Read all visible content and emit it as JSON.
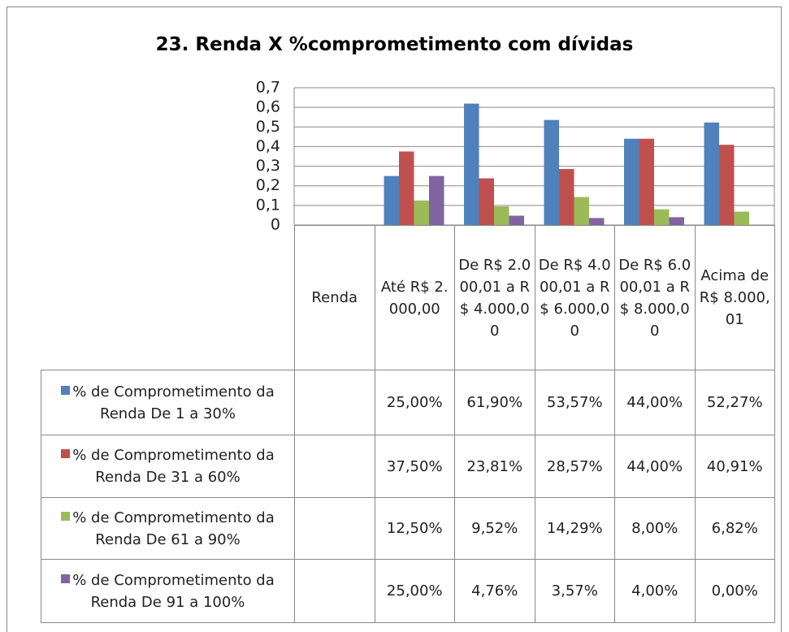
{
  "chart_data": {
    "type": "bar",
    "title": "23. Renda X %comprometimento com dívidas",
    "categories": [
      "Renda",
      "Até R$ 2.000,00",
      "De R$ 2.000,01 a R$ 4.000,00",
      "De R$ 4.000,01 a R$ 6.000,00",
      "De R$ 6.000,01 a R$ 8.000,00",
      "Acima de R$ 8.000,01"
    ],
    "series": [
      {
        "name": "% de Comprometimento da Renda De 1 a 30%",
        "color": "#4f81bd",
        "values": [
          null,
          0.25,
          0.619,
          0.5357,
          0.44,
          0.5227
        ],
        "value_labels": [
          null,
          "25,00%",
          "61,90%",
          "53,57%",
          "44,00%",
          "52,27%"
        ]
      },
      {
        "name": "% de Comprometimento da Renda De 31 a 60%",
        "color": "#c0504d",
        "values": [
          null,
          0.375,
          0.2381,
          0.2857,
          0.44,
          0.4091
        ],
        "value_labels": [
          null,
          "37,50%",
          "23,81%",
          "28,57%",
          "44,00%",
          "40,91%"
        ]
      },
      {
        "name": "% de Comprometimento da Renda De 61 a 90%",
        "color": "#9bbb59",
        "values": [
          null,
          0.125,
          0.0952,
          0.1429,
          0.08,
          0.0682
        ],
        "value_labels": [
          null,
          "12,50%",
          "9,52%",
          "14,29%",
          "8,00%",
          "6,82%"
        ]
      },
      {
        "name": "% de Comprometimento da Renda De 91 a 100%",
        "color": "#8064a2",
        "values": [
          null,
          0.25,
          0.0476,
          0.0357,
          0.04,
          0
        ],
        "value_labels": [
          null,
          "25,00%",
          "4,76%",
          "3,57%",
          "4,00%",
          "0,00%"
        ]
      }
    ],
    "ylim": [
      0,
      0.7
    ],
    "yticks": [
      0,
      {
        "value": 0.1,
        "label": "0,1"
      },
      {
        "value": 0.2,
        "label": "0,2"
      },
      {
        "value": 0.3,
        "label": "0,3"
      },
      {
        "value": 0.4,
        "label": "0,4"
      },
      {
        "value": 0.5,
        "label": "0,5"
      },
      {
        "value": 0.6,
        "label": "0,6"
      },
      {
        "value": 0.7,
        "label": "0,7"
      }
    ],
    "grid": true
  }
}
